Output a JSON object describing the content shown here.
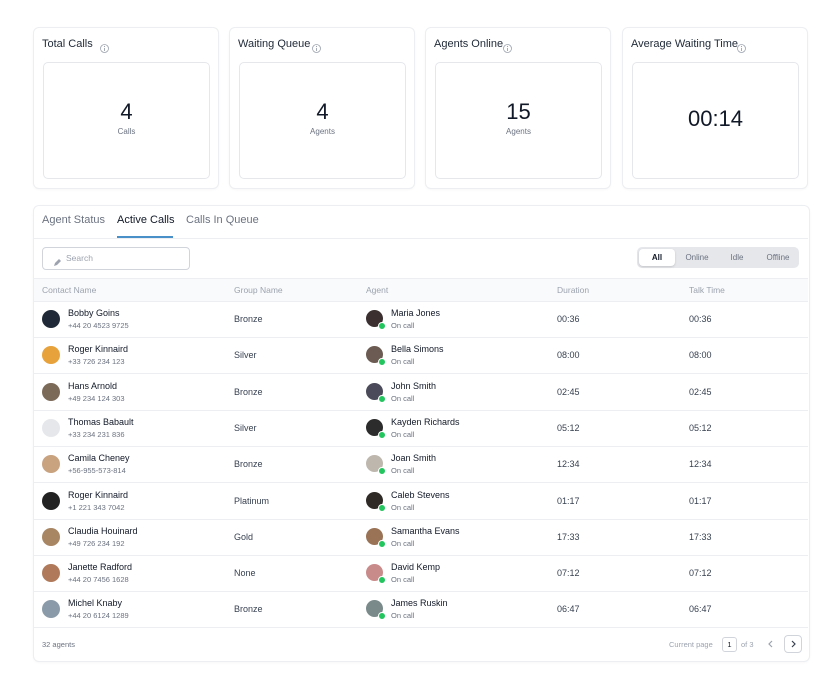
{
  "cards": [
    {
      "title": "Total Calls",
      "value": 4,
      "unit": "Calls"
    },
    {
      "title": "Waiting Queue",
      "value": 4,
      "unit": "Agents"
    },
    {
      "title": "Agents Online",
      "value": 15,
      "unit": "Agents"
    },
    {
      "title": "Average Waiting Time",
      "value": "00:14"
    }
  ],
  "tabs": [
    "Agent Status",
    "Active Calls",
    "Calls In Queue"
  ],
  "search_placeholder": "Search",
  "filters": [
    "All",
    "Online",
    "Idle",
    "Offline"
  ],
  "table": {
    "columns": [
      "Contact Name",
      "Group Name",
      "Agent",
      "Duration",
      "Talk Time"
    ],
    "rows": [
      {
        "contact": "Bobby Goins",
        "phone": "+44 20 4523 9725",
        "group": "Bronze",
        "agent": "Maria Jones",
        "status": "On call",
        "duration": "00:36",
        "talk_time": "00:36"
      },
      {
        "contact": "Roger Kinnaird",
        "phone": "+33 726 234 123",
        "group": "Silver",
        "agent": "Bella Simons",
        "status": "On call",
        "duration": "08:00",
        "talk_time": "08:00"
      },
      {
        "contact": "Hans Arnold",
        "phone": "+49 234 124 303",
        "group": "Bronze",
        "agent": "John Smith",
        "status": "On call",
        "duration": "02:45",
        "talk_time": "02:45"
      },
      {
        "contact": "Thomas Babault",
        "phone": "+33 234 231 836",
        "group": "Silver",
        "agent": "Kayden Richards",
        "status": "On call",
        "duration": "05:12",
        "talk_time": "05:12"
      },
      {
        "contact": "Camila Cheney",
        "phone": "+56-955-573-814",
        "group": "Bronze",
        "agent": "Joan Smith",
        "status": "On call",
        "duration": "12:34",
        "talk_time": "12:34"
      },
      {
        "contact": "Roger Kinnaird",
        "phone": "+1 221 343 7042",
        "group": "Platinum",
        "agent": "Caleb Stevens",
        "status": "On call",
        "duration": "01:17",
        "talk_time": "01:17"
      },
      {
        "contact": "Claudia Houinard",
        "phone": "+49 726 234 192",
        "group": "Gold",
        "agent": "Samantha Evans",
        "status": "On call",
        "duration": "17:33",
        "talk_time": "17:33"
      },
      {
        "contact": "Janette Radford",
        "phone": "+44 20 7456 1628",
        "group": "None",
        "agent": "David Kemp",
        "status": "On call",
        "duration": "07:12",
        "talk_time": "07:12"
      },
      {
        "contact": "Michel Knaby",
        "phone": "+44 20 6124 1289",
        "group": "Bronze",
        "agent": "James Ruskin",
        "status": "On call",
        "duration": "06:47",
        "talk_time": "06:47"
      }
    ]
  },
  "footer": {
    "count": "32 agents",
    "page_label": "Current page",
    "page": 1,
    "page_total": "of 3"
  }
}
